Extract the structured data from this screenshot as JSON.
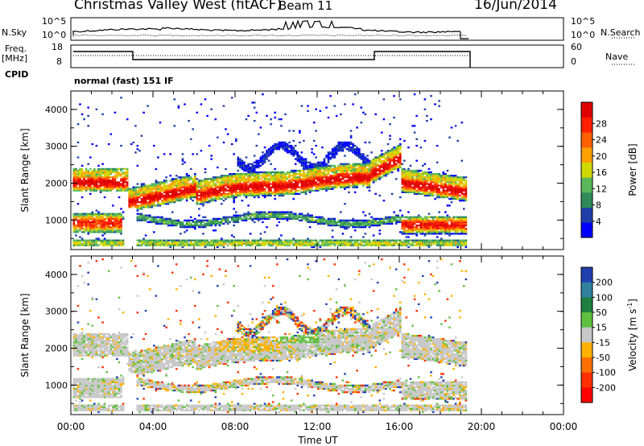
{
  "header": {
    "station": "Christmas Valley West (fitACF)",
    "beam": "Beam 11",
    "date": "16/Jun/2014"
  },
  "panels": {
    "nsky": {
      "label": "N.Sky",
      "left_ticks": [
        "10^5",
        "10^0"
      ],
      "right_ticks": [
        "10^5",
        "10^0"
      ],
      "right_label": "N.Search"
    },
    "freq": {
      "label": "Freq.",
      "unit": "[MHz]",
      "left_ticks": [
        "18",
        "8"
      ],
      "right_ticks": [
        "60",
        "0"
      ],
      "right_label": "Nave"
    },
    "cpid": {
      "label": "CPID",
      "value": "normal (fast) 151 IF"
    }
  },
  "chart_data": [
    {
      "type": "heatmap",
      "name": "power",
      "ylabel": "Slant Range [km]",
      "yticks": [
        "1000",
        "2000",
        "3000",
        "4000"
      ],
      "xticks": [
        "00:00",
        "04:00",
        "08:00",
        "12:00",
        "16:00",
        "20:00",
        "00:00"
      ],
      "xlabel": "Time UT",
      "colorbar_label": "Power [dB]",
      "colorbar_ticks": [
        "4",
        "8",
        "12",
        "16",
        "20",
        "24",
        "28"
      ],
      "colorbar_colors": [
        "#0000ff",
        "#1f3fa8",
        "#2e8b57",
        "#5ab85a",
        "#cfd800",
        "#ffa000",
        "#ff6000",
        "#ff2000",
        "#e00000"
      ]
    },
    {
      "type": "heatmap",
      "name": "velocity",
      "ylabel": "Slant Range [km]",
      "yticks": [
        "1000",
        "2000",
        "3000",
        "4000"
      ],
      "xticks": [
        "00:00",
        "04:00",
        "08:00",
        "12:00",
        "16:00",
        "20:00",
        "00:00"
      ],
      "xlabel": "Time UT",
      "colorbar_label": "Velocity [m s",
      "colorbar_label_sup": "-1",
      "colorbar_ticks": [
        "200",
        "100",
        "50",
        "15",
        "-15",
        "-50",
        "-100",
        "-200"
      ],
      "colorbar_colors": [
        "#2040b0",
        "#3080a0",
        "#1e8040",
        "#60c040",
        "#c8c8c8",
        "#ffb000",
        "#ff7000",
        "#ff3000",
        "#ff0000"
      ]
    }
  ]
}
